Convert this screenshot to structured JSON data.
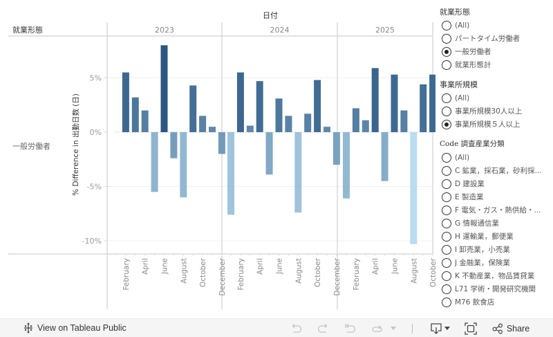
{
  "chart_data": {
    "type": "bar",
    "title": "",
    "column_header": "日付",
    "row_header": "就業形態",
    "row_label": "一般労働者",
    "ylabel": "% Difference in 出勤日数 (日)",
    "xlabel": "",
    "ylim": [
      -11.2,
      10
    ],
    "yticks": [
      5,
      0,
      -5,
      -10
    ],
    "ytick_labels": [
      "5%",
      "0%",
      "-5%",
      "-10%"
    ],
    "grid": true,
    "legend": "none",
    "month_names": [
      "January",
      "February",
      "March",
      "April",
      "May",
      "June",
      "July",
      "August",
      "September",
      "October",
      "November",
      "December"
    ],
    "shown_month_labels": [
      "February",
      "April",
      "June",
      "August",
      "October",
      "December"
    ],
    "panes": [
      {
        "year": "2023",
        "months": [
          "January",
          "February",
          "March",
          "April",
          "May",
          "June",
          "July",
          "August",
          "September",
          "October",
          "November",
          "December"
        ],
        "values": [
          null,
          5.5,
          3.2,
          2.0,
          -5.5,
          8.0,
          -2.4,
          -6.0,
          4.3,
          1.5,
          0.5,
          -2.0
        ]
      },
      {
        "year": "2024",
        "months": [
          "January",
          "February",
          "March",
          "April",
          "May",
          "June",
          "July",
          "August",
          "September",
          "October",
          "November",
          "December"
        ],
        "values": [
          -7.6,
          5.5,
          0.6,
          4.7,
          -3.9,
          3.1,
          1.5,
          -7.4,
          1.7,
          4.8,
          0.5,
          -3.0
        ]
      },
      {
        "year": "2025",
        "months": [
          "January",
          "February",
          "March",
          "April",
          "May",
          "June",
          "July",
          "August",
          "September",
          "October"
        ],
        "values": [
          -6.1,
          2.2,
          1.1,
          5.9,
          -4.5,
          5.3,
          2.0,
          -10.3,
          4.4,
          5.3
        ]
      }
    ],
    "color_scale": [
      "#b9dcee",
      "#2a5783"
    ]
  },
  "filters": [
    {
      "title": "就業形態",
      "serif": false,
      "options": [
        {
          "label": "(All)",
          "checked": false
        },
        {
          "label": "パートタイム労働者",
          "checked": false
        },
        {
          "label": "一般労働者",
          "checked": true
        },
        {
          "label": "就業形態計",
          "checked": false
        }
      ]
    },
    {
      "title": "事業所規模",
      "serif": false,
      "options": [
        {
          "label": "(All)",
          "checked": false
        },
        {
          "label": "事業所規模30人以上",
          "checked": false
        },
        {
          "label": "事業所規模５人以上",
          "checked": true
        }
      ]
    },
    {
      "title": "Code 調査産業分類",
      "serif": true,
      "options": [
        {
          "label": "(All)",
          "checked": false
        },
        {
          "label": "C 鉱業，採石業，砂利採...",
          "checked": false
        },
        {
          "label": "D 建設業",
          "checked": false
        },
        {
          "label": "E 製造業",
          "checked": false
        },
        {
          "label": "F 電気・ガス・熱供給・...",
          "checked": false
        },
        {
          "label": "G 情報通信業",
          "checked": false
        },
        {
          "label": "H 運輸業，郵便業",
          "checked": false
        },
        {
          "label": "I 卸売業，小売業",
          "checked": false
        },
        {
          "label": "J 金融業，保険業",
          "checked": false
        },
        {
          "label": "K 不動産業，物品賃貸業",
          "checked": false
        },
        {
          "label": "L71 学術・開発研究機関",
          "checked": false
        },
        {
          "label": "M76 飲食店",
          "checked": false
        }
      ]
    }
  ],
  "toolbar": {
    "view_on_label": "View on Tableau Public",
    "share_label": "Share",
    "icons": [
      "tableau-logo-icon",
      "undo-icon",
      "redo-icon",
      "revert-icon",
      "refresh-icon",
      "dropdown-icon",
      "download-icon",
      "fullscreen-icon",
      "share-icon"
    ]
  }
}
